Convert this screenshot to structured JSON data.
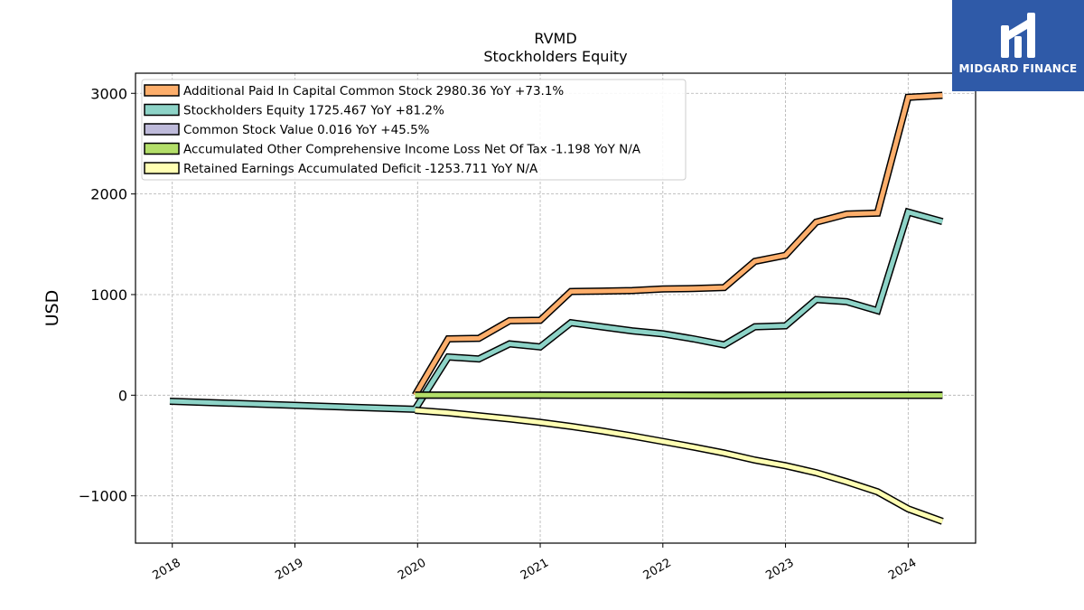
{
  "chart_data": {
    "type": "line",
    "title": "RVMD",
    "subtitle": "Stockholders  Equity",
    "ylabel": "USD",
    "xlabel": "",
    "xlim": [
      2017.7,
      2024.55
    ],
    "ylim": [
      -1470,
      3200
    ],
    "x_ticks": [
      {
        "value": 2018,
        "label": "2018"
      },
      {
        "value": 2019,
        "label": "2019"
      },
      {
        "value": 2020,
        "label": "2020"
      },
      {
        "value": 2021,
        "label": "2021"
      },
      {
        "value": 2022,
        "label": "2022"
      },
      {
        "value": 2023,
        "label": "2023"
      },
      {
        "value": 2024,
        "label": "2024"
      }
    ],
    "y_ticks": [
      {
        "value": 3000,
        "label": "3000"
      },
      {
        "value": 2000,
        "label": "2000"
      },
      {
        "value": 1000,
        "label": "1000"
      },
      {
        "value": 0,
        "label": "0"
      },
      {
        "value": -1000,
        "label": "−1000"
      }
    ],
    "grid": true,
    "legend_position": "top-left",
    "series": [
      {
        "name": "Additional Paid In Capital Common Stock  2980.36 YoY +73.1%",
        "color": "#fdae6b",
        "x": [
          2019.98,
          2020.25,
          2020.5,
          2020.75,
          2021.0,
          2021.25,
          2021.5,
          2021.75,
          2022.0,
          2022.25,
          2022.5,
          2022.75,
          2023.0,
          2023.25,
          2023.5,
          2023.75,
          2024.0,
          2024.28
        ],
        "values": [
          0,
          560,
          565,
          740,
          745,
          1030,
          1035,
          1040,
          1055,
          1060,
          1070,
          1330,
          1390,
          1720,
          1800,
          1810,
          2960,
          2980
        ]
      },
      {
        "name": "Stockholders Equity  1725.467 YoY +81.2%",
        "color": "#8dd3c7",
        "x": [
          2017.98,
          2019.98,
          2020.25,
          2020.5,
          2020.75,
          2021.0,
          2021.25,
          2021.5,
          2021.75,
          2022.0,
          2022.25,
          2022.5,
          2022.75,
          2023.0,
          2023.25,
          2023.5,
          2023.75,
          2024.0,
          2024.28
        ],
        "values": [
          -60,
          -140,
          380,
          360,
          510,
          480,
          720,
          680,
          640,
          610,
          560,
          500,
          680,
          690,
          950,
          930,
          840,
          1820,
          1725
        ]
      },
      {
        "name": "Common Stock Value  0.016 YoY +45.5%",
        "color": "#bebada",
        "x": [
          2019.98,
          2024.28
        ],
        "values": [
          0.011,
          0.016
        ]
      },
      {
        "name": "Accumulated Other Comprehensive Income Loss Net Of Tax  -1.198 YoY N/A",
        "color": "#b3de69",
        "x": [
          2019.98,
          2020.5,
          2021.0,
          2021.5,
          2022.0,
          2022.5,
          2023.0,
          2023.5,
          2024.0,
          2024.28
        ],
        "values": [
          0,
          0,
          0,
          -0.5,
          -2,
          -3,
          -2.5,
          -1.5,
          -1.2,
          -1.198
        ]
      },
      {
        "name": "Retained Earnings Accumulated Deficit  -1253.711 YoY N/A",
        "color": "#ffffb3",
        "x": [
          2019.98,
          2020.25,
          2020.5,
          2020.75,
          2021.0,
          2021.25,
          2021.5,
          2021.75,
          2022.0,
          2022.25,
          2022.5,
          2022.75,
          2023.0,
          2023.25,
          2023.5,
          2023.75,
          2024.0,
          2024.28
        ],
        "values": [
          -150,
          -175,
          -205,
          -235,
          -270,
          -310,
          -355,
          -405,
          -460,
          -515,
          -575,
          -645,
          -700,
          -770,
          -860,
          -960,
          -1130,
          -1254
        ]
      }
    ]
  },
  "logo": {
    "brand": "MIDGARD FINANCE",
    "color": "#2f5aa8"
  }
}
